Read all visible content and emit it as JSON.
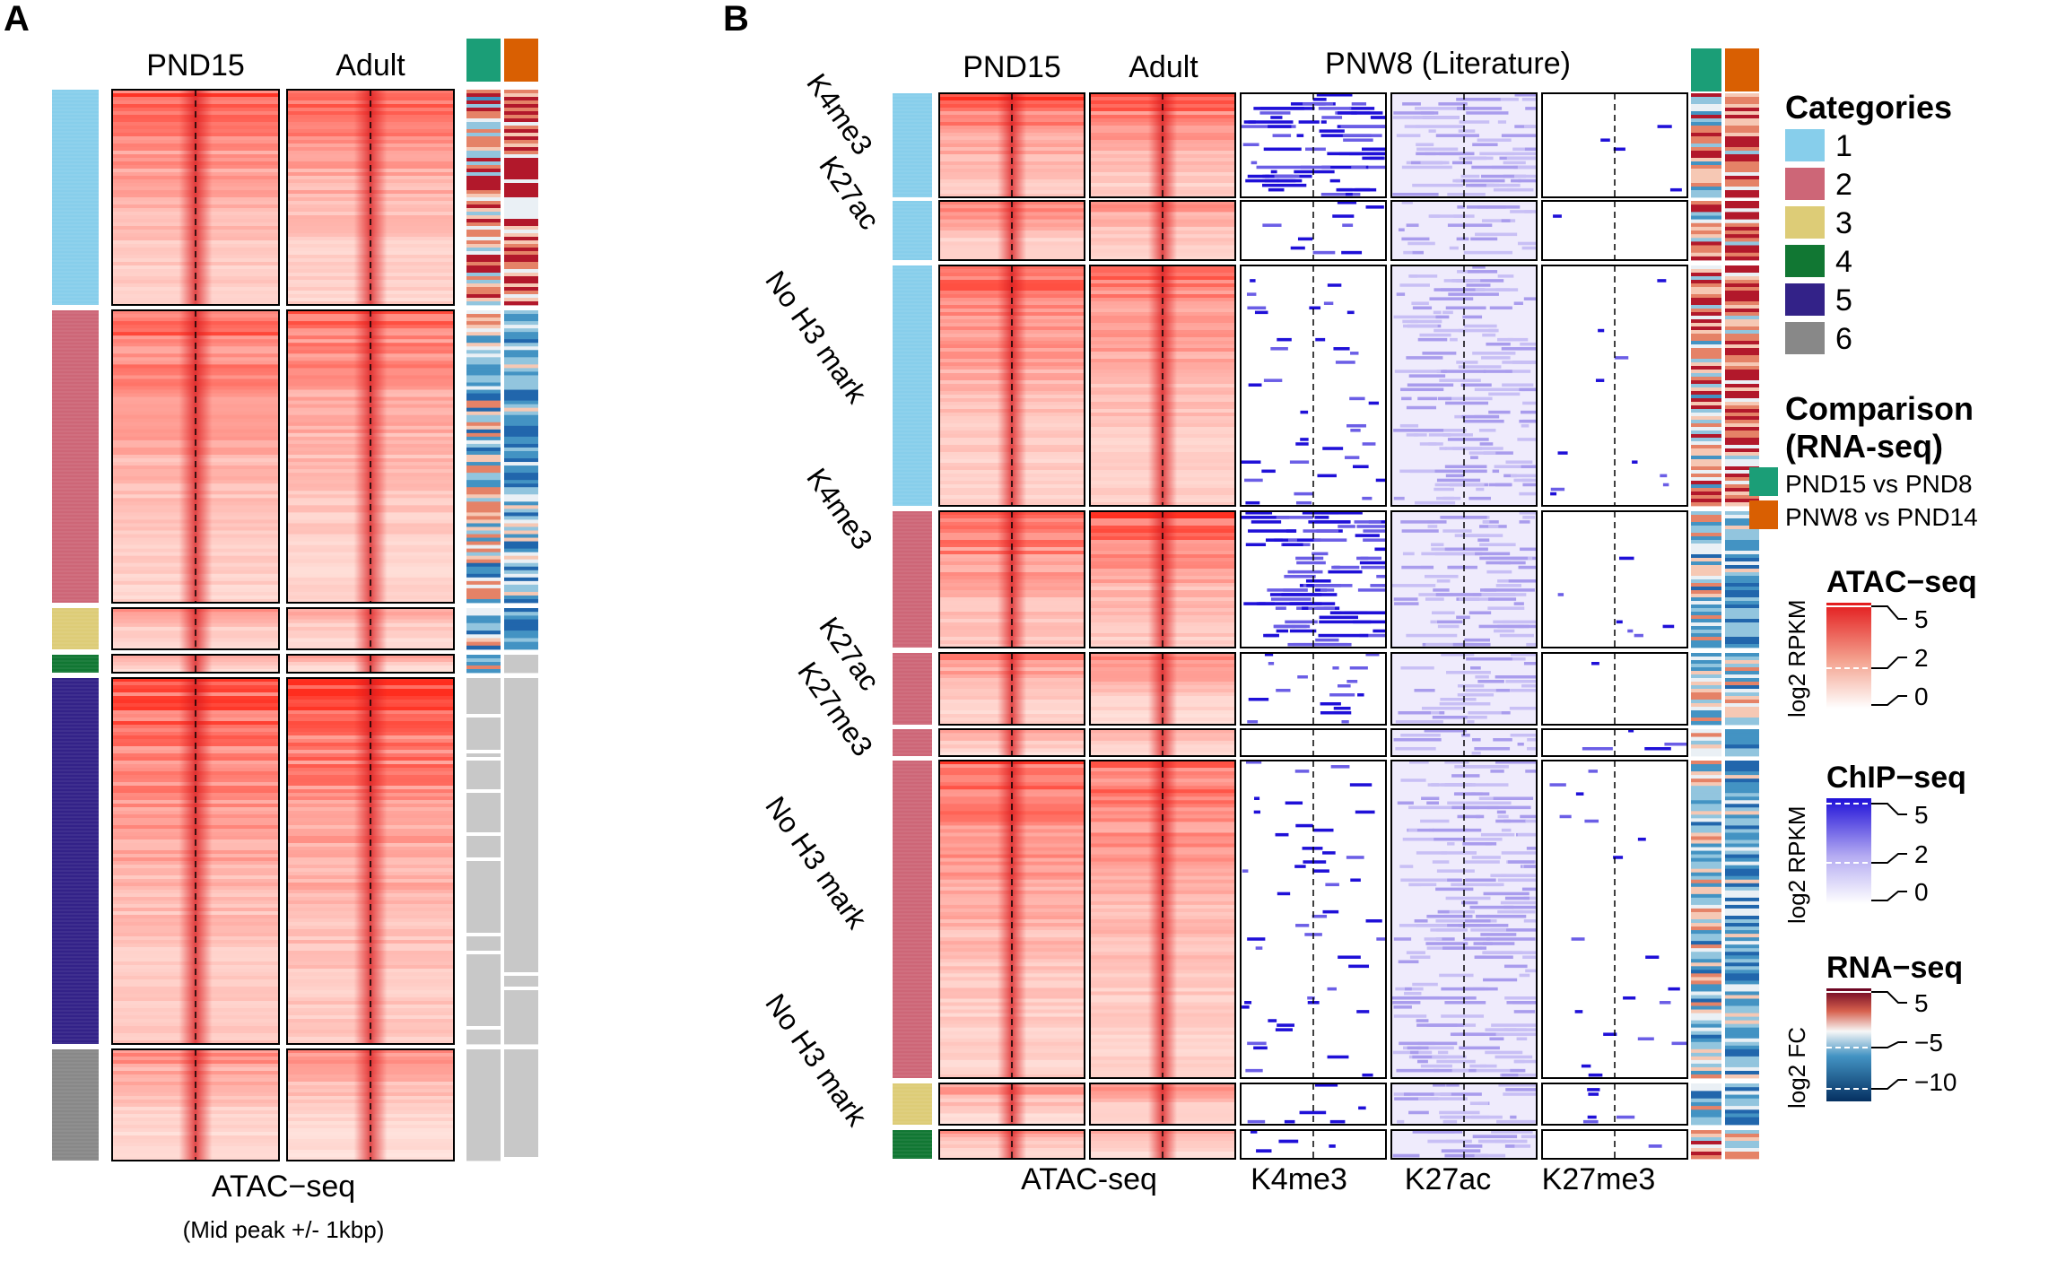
{
  "panel_a": {
    "label": "A",
    "col_headers": [
      "PND15",
      "Adult"
    ],
    "xlabel": "ATAC−seq",
    "xsublabel": "(Mid peak +/- 1kbp)"
  },
  "panel_b": {
    "label": "B",
    "col_headers": [
      "PND15",
      "Adult"
    ],
    "literature_header": "PNW8 (Literature)",
    "row_labels": [
      "K4me3",
      "K27ac",
      "No H3 mark",
      "K4me3",
      "K27ac",
      "K27me3",
      "No H3 mark",
      "No H3 mark"
    ],
    "xlabels": [
      "ATAC-seq",
      "K4me3",
      "K27ac",
      "K27me3"
    ]
  },
  "legend": {
    "categories_title": "Categories",
    "categories": [
      {
        "label": "1",
        "color": "#87CEEB"
      },
      {
        "label": "2",
        "color": "#CD6677"
      },
      {
        "label": "3",
        "color": "#DDCC77"
      },
      {
        "label": "4",
        "color": "#117733"
      },
      {
        "label": "5",
        "color": "#332288"
      },
      {
        "label": "6",
        "color": "#888888"
      }
    ],
    "comparison_title_1": "Comparison",
    "comparison_title_2": "(RNA-seq)",
    "comparisons": [
      {
        "label": "PND15 vs PND8",
        "color": "#1B9E77"
      },
      {
        "label": "PNW8 vs PND14",
        "color": "#D95F02"
      }
    ],
    "atac_title": "ATAC−seq",
    "atac_axis": "log2 RPKM",
    "atac_ticks": [
      "5",
      "2",
      "0"
    ],
    "chip_title": "ChIP−seq",
    "chip_axis": "log2 RPKM",
    "chip_ticks": [
      "5",
      "2",
      "0"
    ],
    "rna_title": "RNA−seq",
    "rna_axis": "log2 FC",
    "rna_ticks": [
      "5",
      "−5",
      "−10"
    ]
  }
}
